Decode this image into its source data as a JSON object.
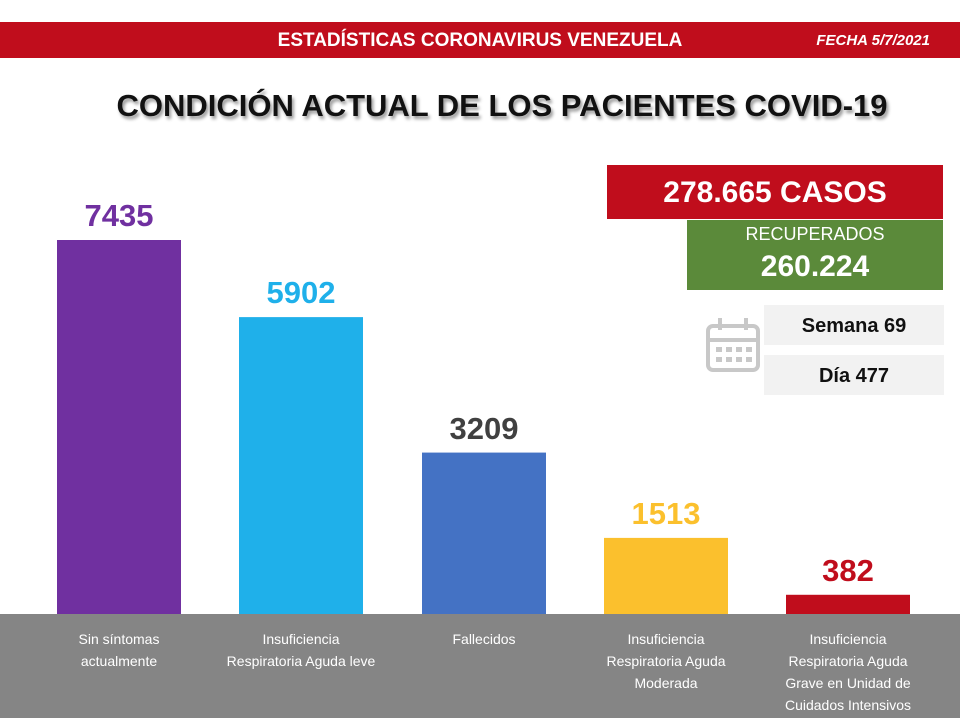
{
  "header": {
    "title": "ESTADÍSTICAS CORONAVIRUS VENEZUELA",
    "date": "FECHA 5/7/2021"
  },
  "summary": {
    "cases": "278.665 CASOS",
    "recovered_label": "RECUPERADOS",
    "recovered": "260.224",
    "week": "Semana 69",
    "day": "Día 477"
  },
  "chart_data": {
    "type": "bar",
    "title": "CONDICIÓN ACTUAL DE LOS PACIENTES COVID-19",
    "categories": [
      "Sin síntomas\nactualmente",
      "Insuficiencia\nRespiratoria Aguda leve",
      "Fallecidos",
      "Insuficiencia\nRespiratoria Aguda\nModerada",
      "Insuficiencia\nRespiratoria Aguda\nGrave en Unidad de\nCuidados Intensivos"
    ],
    "values": [
      7435,
      5902,
      3209,
      1513,
      382
    ],
    "colors": [
      "#7030a0",
      "#1fb0ea",
      "#4472c4",
      "#fbc02d",
      "#c00d1c"
    ],
    "label_colors": [
      "#7030a0",
      "#1fb0ea",
      "#404040",
      "#fbc02d",
      "#c00d1c"
    ]
  }
}
